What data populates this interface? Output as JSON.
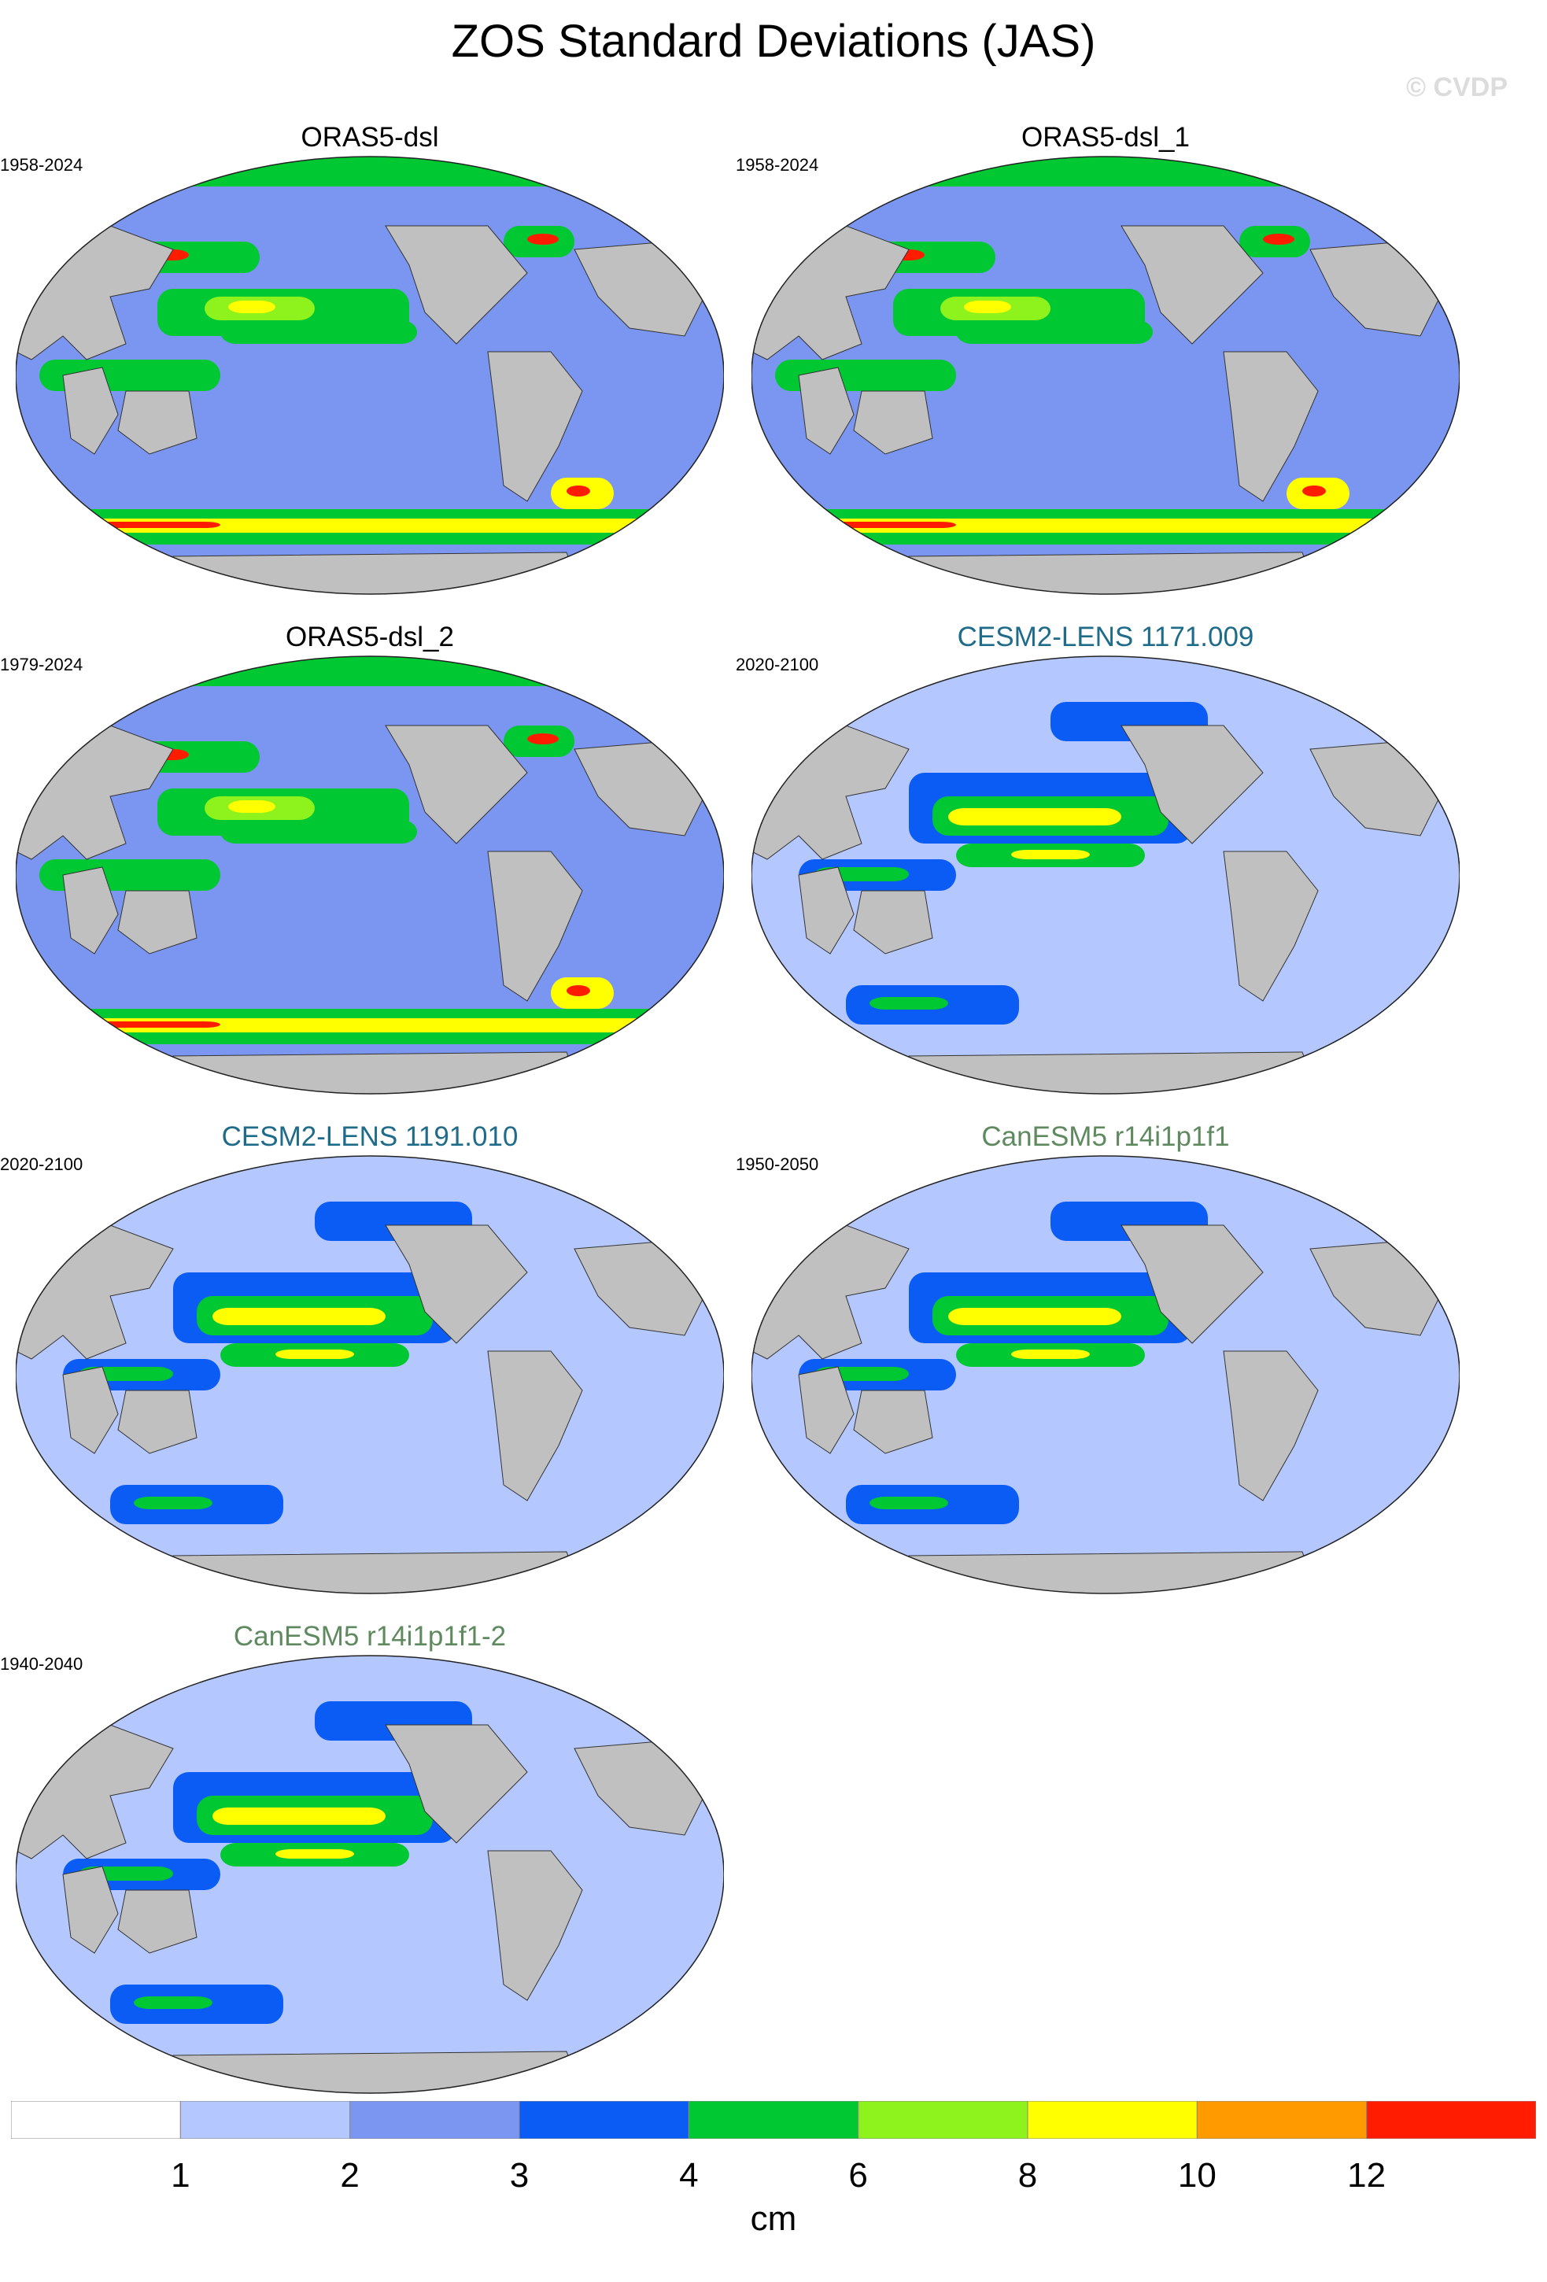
{
  "title": "ZOS Standard Deviations (JAS)",
  "copyright": "© CVDP",
  "colors": {
    "land": "#c0c0c0",
    "scale": [
      "#ffffff",
      "#b4c8ff",
      "#7b96f0",
      "#0a5cf5",
      "#00c832",
      "#8ef21c",
      "#ffff00",
      "#ff9b00",
      "#ff1c00"
    ],
    "ORAS5-dsl": "#000000",
    "CESM2-LENS": "#1e6b8a",
    "CanESM5": "#5f8a5f"
  },
  "panels": [
    {
      "name": "ORAS5-dsl",
      "period": "1958-2024",
      "group": "ORAS5-dsl"
    },
    {
      "name": "ORAS5-dsl_1",
      "period": "1958-2024",
      "group": "ORAS5-dsl"
    },
    {
      "name": "ORAS5-dsl_2",
      "period": "1979-2024",
      "group": "ORAS5-dsl"
    },
    {
      "name": "CESM2-LENS 1171.009",
      "period": "2020-2100",
      "group": "CESM2-LENS"
    },
    {
      "name": "CESM2-LENS 1191.010",
      "period": "2020-2100",
      "group": "CESM2-LENS"
    },
    {
      "name": "CanESM5 r14i1p1f1",
      "period": "1950-2050",
      "group": "CanESM5"
    },
    {
      "name": "CanESM5 r14i1p1f1-2",
      "period": "1940-2040",
      "group": "CanESM5"
    }
  ],
  "colorbar": {
    "labels": [
      "1",
      "2",
      "3",
      "4",
      "6",
      "8",
      "10",
      "12"
    ],
    "units": "cm"
  }
}
